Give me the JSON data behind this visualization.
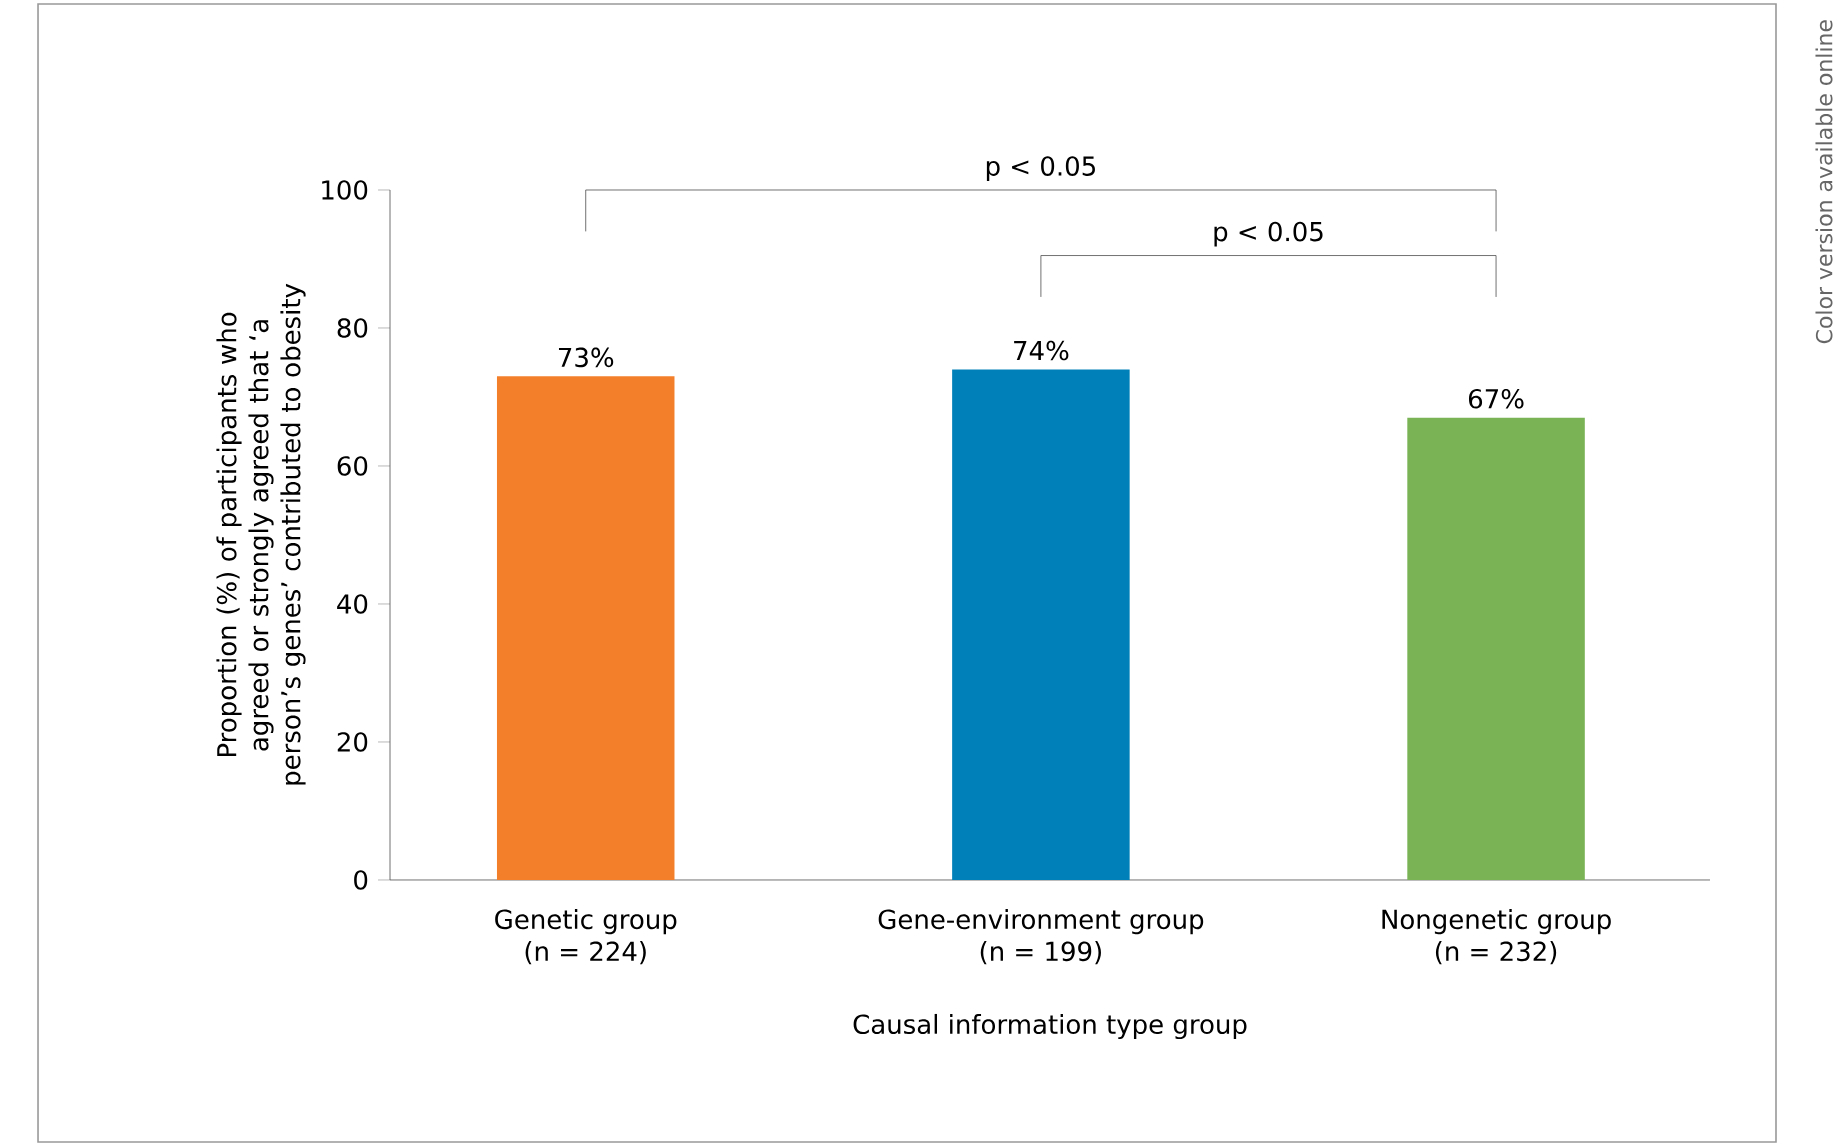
{
  "chart_data": {
    "type": "bar",
    "categories": [
      "Genetic group\n(n = 224)",
      "Gene-environment group\n(n = 199)",
      "Nongenetic group\n(n = 232)"
    ],
    "values": [
      73,
      74,
      67
    ],
    "colors": [
      "#f47f2a",
      "#0080b8",
      "#7ab356"
    ],
    "value_labels": [
      "73%",
      "74%",
      "67%"
    ],
    "xlabel": "Causal information type group",
    "ylabel": "Proportion (%) of participants who agreed or strongly agreed that ‘a person’s genes’ contributed to obesity",
    "ylim": [
      0,
      100
    ],
    "yticks": [
      0,
      20,
      40,
      60,
      80,
      100
    ],
    "annotations": [
      "p < 0.05",
      "p < 0.05",
      "Color version available online"
    ]
  }
}
